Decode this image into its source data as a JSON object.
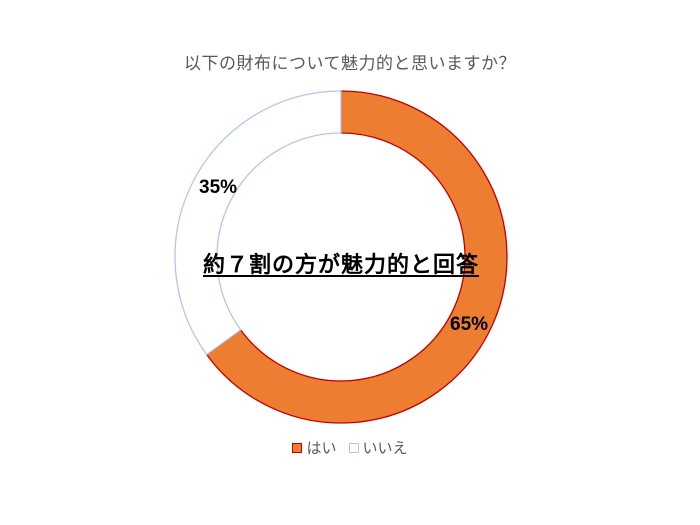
{
  "chart_data": {
    "type": "pie",
    "variant": "donut",
    "title": "以下の財布について魅力的と思いますか？",
    "categories": [
      "はい",
      "いいえ"
    ],
    "values": [
      65,
      35
    ],
    "labels": [
      "65%",
      "35%"
    ],
    "colors": {
      "はい": "#ED7D31",
      "いいえ": "#FFFFFF"
    },
    "border_colors": {
      "はい": "#C00000",
      "いいえ": "#B4C7E7"
    },
    "center_annotation": "約７割の方が魅力的と回答",
    "legend_position": "bottom",
    "start_angle_deg": 0,
    "direction": "clockwise"
  },
  "title": "以下の財布について魅力的と思いますか？",
  "center_annotation": "約７割の方が魅力的と回答",
  "data_labels": {
    "yes": "65%",
    "no": "35%"
  },
  "legend": {
    "items": [
      {
        "label": "はい",
        "fill": "#ED7D31",
        "stroke": "#C00000"
      },
      {
        "label": "いいえ",
        "fill": "#FFFFFF",
        "stroke": "#B4C7E7"
      }
    ]
  }
}
